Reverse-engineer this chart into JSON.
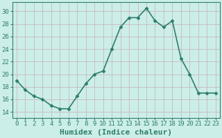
{
  "x": [
    0,
    1,
    2,
    3,
    4,
    5,
    6,
    7,
    8,
    9,
    10,
    11,
    12,
    13,
    14,
    15,
    16,
    17,
    18,
    19,
    20,
    21,
    22,
    23
  ],
  "y": [
    19,
    17.5,
    16.5,
    16,
    15,
    14.5,
    14.5,
    16.5,
    18.5,
    20,
    20.5,
    24,
    27.5,
    29,
    29,
    30.5,
    28.5,
    27.5,
    28.5,
    22.5,
    20,
    17,
    17,
    17
  ],
  "line_color": "#2e7d6e",
  "marker": "D",
  "marker_size": 2.5,
  "line_width": 1.2,
  "bg_color": "#cceee8",
  "grid_color": "#c8b8c0",
  "tick_color": "#2e7d6e",
  "xlabel": "Humidex (Indice chaleur)",
  "xlabel_fontsize": 8,
  "tick_fontsize": 6.5,
  "ylim": [
    13,
    31.5
  ],
  "yticks": [
    14,
    16,
    18,
    20,
    22,
    24,
    26,
    28,
    30
  ],
  "xticks": [
    0,
    1,
    2,
    3,
    4,
    5,
    6,
    7,
    8,
    9,
    10,
    11,
    12,
    13,
    14,
    15,
    16,
    17,
    18,
    19,
    20,
    21,
    22,
    23
  ],
  "xlim": [
    -0.5,
    23.5
  ]
}
